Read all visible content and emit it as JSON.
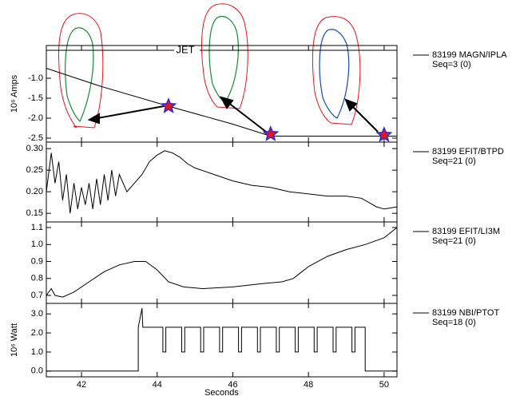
{
  "chart_data": [
    {
      "type": "line",
      "title": "JET",
      "y_label": "10⁶ Amps",
      "xlim": [
        41.07,
        50.34
      ],
      "xticks": [
        42,
        44,
        46,
        48,
        50
      ],
      "ylim": [
        -2.6,
        -0.18
      ],
      "yticks": [
        {
          "value": -1,
          "label": "-1.0"
        },
        {
          "value": -1.5,
          "label": "-1.5"
        },
        {
          "value": -2,
          "label": "-2.0"
        },
        {
          "value": -2.5,
          "label": "-2.5"
        }
      ],
      "series": [
        {
          "name": "83199 MAGN/IPLA",
          "seq": "Seq=3 (0)",
          "color": "#000000",
          "x": [
            41.07,
            42.5,
            44.3,
            46.0,
            47.0,
            48.0,
            50.34
          ],
          "values": [
            -0.75,
            -1.2,
            -1.7,
            -2.15,
            -2.45,
            -2.45,
            -2.45
          ]
        }
      ],
      "markers": {
        "color": "#e8141e",
        "edge": "#2a2ad8",
        "x": [
          44.3,
          47.0,
          50.0
        ],
        "values": [
          -1.7,
          -2.4,
          -2.42
        ]
      }
    },
    {
      "type": "line",
      "xlim": [
        41.07,
        50.34
      ],
      "xticks": [
        42,
        44,
        46,
        48,
        50
      ],
      "ylim": [
        0.13,
        0.315
      ],
      "yticks": [
        {
          "value": 0.3,
          "label": "0.30"
        },
        0.25,
        {
          "value": 0.2,
          "label": "0.20"
        },
        0.15
      ],
      "series": [
        {
          "name": "83199 EFIT/BTPD",
          "seq": "Seq=21 (0)",
          "color": "#000000",
          "x": [
            41.07,
            41.2,
            41.3,
            41.4,
            41.5,
            41.6,
            41.7,
            41.8,
            41.9,
            42.0,
            42.1,
            42.2,
            42.3,
            42.4,
            42.5,
            42.6,
            42.7,
            42.8,
            42.9,
            43.0,
            43.2,
            43.4,
            43.6,
            43.8,
            44.0,
            44.2,
            44.4,
            44.6,
            44.8,
            45.0,
            45.5,
            46.0,
            46.5,
            47.0,
            47.5,
            48.0,
            48.5,
            49.0,
            49.4,
            49.6,
            49.8,
            50.0,
            50.34
          ],
          "values": [
            0.2,
            0.29,
            0.22,
            0.27,
            0.18,
            0.24,
            0.15,
            0.22,
            0.16,
            0.21,
            0.17,
            0.22,
            0.16,
            0.23,
            0.17,
            0.24,
            0.18,
            0.25,
            0.19,
            0.24,
            0.2,
            0.22,
            0.24,
            0.27,
            0.285,
            0.295,
            0.29,
            0.28,
            0.265,
            0.255,
            0.24,
            0.225,
            0.215,
            0.21,
            0.2,
            0.195,
            0.19,
            0.19,
            0.185,
            0.175,
            0.165,
            0.16,
            0.165
          ]
        }
      ]
    },
    {
      "type": "line",
      "xlim": [
        41.07,
        50.34
      ],
      "xticks": [
        42,
        44,
        46,
        48,
        50
      ],
      "ylim": [
        0.653,
        1.133
      ],
      "yticks": [
        1.1,
        {
          "value": 1,
          "label": "1.0"
        },
        0.9,
        0.8,
        0.7
      ],
      "series": [
        {
          "name": "83199 EFIT/LI3M",
          "seq": "Seq=21 (0)",
          "color": "#000000",
          "x": [
            41.07,
            41.2,
            41.3,
            41.5,
            41.8,
            42.2,
            42.6,
            43.0,
            43.4,
            43.7,
            44.0,
            44.3,
            44.7,
            45.2,
            46.0,
            46.8,
            47.3,
            47.6,
            48.0,
            48.5,
            49.0,
            49.5,
            50.0,
            50.34
          ],
          "values": [
            0.7,
            0.74,
            0.7,
            0.69,
            0.72,
            0.78,
            0.84,
            0.88,
            0.9,
            0.9,
            0.85,
            0.78,
            0.75,
            0.74,
            0.75,
            0.77,
            0.78,
            0.8,
            0.87,
            0.93,
            0.97,
            1.0,
            1.04,
            1.1
          ]
        }
      ]
    },
    {
      "type": "line",
      "y_label": "10⁶ Watt",
      "x_label": "Seconds",
      "xlim": [
        41.07,
        50.34
      ],
      "xticks": [
        42,
        44,
        46,
        48,
        50
      ],
      "ylim": [
        -0.3,
        3.55
      ],
      "yticks": [
        {
          "value": 3,
          "label": "3.0"
        },
        {
          "value": 2,
          "label": "2.0"
        },
        {
          "value": 1,
          "label": "1.0"
        },
        {
          "value": 0,
          "label": "0.0"
        }
      ],
      "series": [
        {
          "name": "83199 NBI/PTOT",
          "seq": "Seq=18 (0)",
          "color": "#000000",
          "x": [
            41.07,
            43.5,
            43.5,
            43.6,
            43.62,
            44.15,
            44.15,
            44.23,
            44.23,
            44.65,
            44.65,
            44.73,
            44.73,
            45.15,
            45.15,
            45.23,
            45.23,
            45.65,
            45.65,
            45.73,
            45.73,
            46.15,
            46.15,
            46.23,
            46.23,
            46.65,
            46.65,
            46.73,
            46.73,
            47.15,
            47.15,
            47.23,
            47.23,
            47.65,
            47.65,
            47.73,
            47.73,
            48.15,
            48.15,
            48.23,
            48.23,
            48.65,
            48.65,
            48.73,
            48.73,
            49.15,
            49.15,
            49.23,
            49.23,
            49.5,
            49.5,
            50.34
          ],
          "values": [
            0,
            0,
            2.3,
            3.3,
            2.3,
            2.3,
            1.0,
            1.0,
            2.3,
            2.3,
            1.0,
            1.0,
            2.3,
            2.3,
            1.0,
            1.0,
            2.3,
            2.3,
            1.0,
            1.0,
            2.3,
            2.3,
            1.0,
            1.0,
            2.3,
            2.3,
            1.0,
            1.0,
            2.3,
            2.3,
            1.0,
            1.0,
            2.3,
            2.3,
            1.0,
            1.0,
            2.3,
            2.3,
            1.0,
            1.0,
            2.3,
            2.3,
            1.0,
            1.0,
            2.3,
            2.3,
            1.0,
            1.0,
            2.3,
            2.3,
            0,
            0
          ]
        }
      ]
    }
  ]
}
